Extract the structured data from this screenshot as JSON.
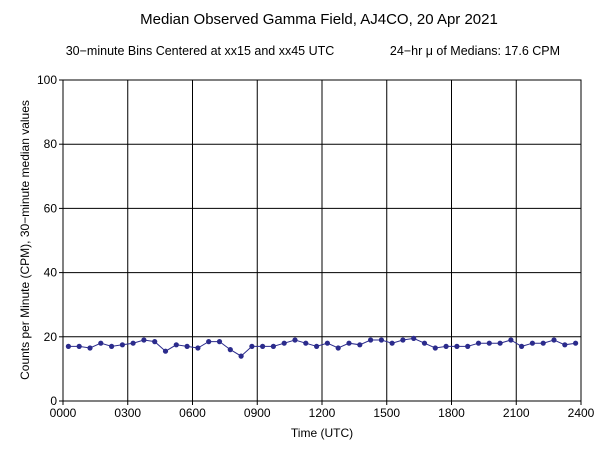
{
  "chart_data": {
    "type": "line",
    "title": "Median Observed Gamma Field, AJ4CO, 20 Apr 2021",
    "subtitle_left": "30−minute Bins Centered at xx15 and xx45 UTC",
    "subtitle_right": "24−hr μ of Medians: 17.6 CPM",
    "xlabel": "Time (UTC)",
    "ylabel": "Counts per Minute (CPM), 30−minute median values",
    "xlim": [
      0,
      2400
    ],
    "ylim": [
      0,
      100
    ],
    "x_tick_labels": [
      "0000",
      "0300",
      "0600",
      "0900",
      "1200",
      "1500",
      "1800",
      "2100",
      "2400"
    ],
    "y_tick_labels": [
      "0",
      "20",
      "40",
      "60",
      "80",
      "100"
    ],
    "grid": true,
    "series_color": "#2b2b8c",
    "x": [
      "0015",
      "0045",
      "0115",
      "0145",
      "0215",
      "0245",
      "0315",
      "0345",
      "0415",
      "0445",
      "0515",
      "0545",
      "0615",
      "0645",
      "0715",
      "0745",
      "0815",
      "0845",
      "0915",
      "0945",
      "1015",
      "1045",
      "1115",
      "1145",
      "1215",
      "1245",
      "1315",
      "1345",
      "1415",
      "1445",
      "1515",
      "1545",
      "1615",
      "1645",
      "1715",
      "1745",
      "1815",
      "1845",
      "1915",
      "1945",
      "2015",
      "2045",
      "2115",
      "2145",
      "2215",
      "2245",
      "2315",
      "2345"
    ],
    "values": [
      17,
      17,
      16.5,
      18,
      17,
      17.5,
      18,
      19,
      18.5,
      15.5,
      17.5,
      17,
      16.5,
      18.5,
      18.5,
      16,
      14,
      17,
      17,
      17,
      18,
      19,
      18,
      17,
      18,
      16.5,
      18,
      17.5,
      19,
      19,
      18,
      19,
      19.5,
      18,
      16.5,
      17,
      17,
      17,
      18,
      18,
      18,
      19,
      17,
      18,
      18,
      19,
      17.5,
      18
    ]
  }
}
